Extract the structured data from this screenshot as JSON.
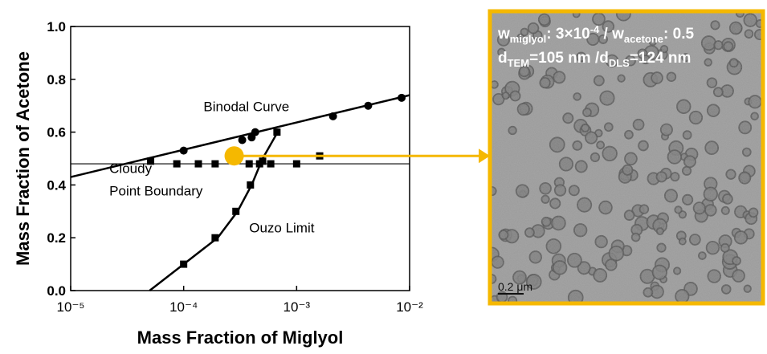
{
  "chart_data": {
    "type": "scatter",
    "xlabel": "Mass Fraction of Miglyol",
    "ylabel": "Mass Fraction of Acetone",
    "xscale": "log",
    "xlim": [
      1e-05,
      0.01
    ],
    "ylim": [
      0,
      1
    ],
    "xticks": [
      {
        "value": 1e-05,
        "label": "10⁻⁵"
      },
      {
        "value": 0.0001,
        "label": "10⁻⁴"
      },
      {
        "value": 0.001,
        "label": "10⁻³"
      },
      {
        "value": 0.01,
        "label": "10⁻²"
      }
    ],
    "yticks": [
      {
        "value": 0,
        "label": "0.0"
      },
      0.2,
      0.4,
      0.6,
      0.8,
      {
        "value": 1,
        "label": "1.0"
      }
    ],
    "series": [
      {
        "marker": "none",
        "line": true,
        "color": "#000000",
        "x": [
          1e-05,
          0.01
        ],
        "values": [
          0.43,
          0.74
        ]
      },
      {
        "marker": "none",
        "line": true,
        "color": "#000000",
        "x": [
          1e-05,
          0.01
        ],
        "values": [
          0.48,
          0.48
        ]
      },
      {
        "marker": "none",
        "line": true,
        "color": "#000000",
        "x": [
          5e-05,
          0.0001,
          0.0002,
          0.0003,
          0.0004,
          0.0005,
          0.0007
        ],
        "values": [
          0,
          0.1,
          0.2,
          0.3,
          0.4,
          0.5,
          0.61
        ]
      },
      {
        "marker": "circle",
        "color": "#000000",
        "x": [
          0.0001,
          0.00033,
          0.0004,
          0.00043,
          0.0021,
          0.0043,
          0.0085
        ],
        "values": [
          0.53,
          0.57,
          0.58,
          0.6,
          0.66,
          0.7,
          0.73
        ]
      },
      {
        "marker": "square",
        "color": "#000000",
        "x": [
          5.1e-05,
          8.7e-05,
          0.000135,
          0.00019,
          0.00038,
          0.00047,
          0.00059,
          0.001,
          0.0016
        ],
        "values": [
          0.49,
          0.48,
          0.48,
          0.48,
          0.48,
          0.48,
          0.48,
          0.48,
          0.51
        ]
      },
      {
        "marker": "square",
        "color": "#000000",
        "x": [
          0.0001,
          0.00019,
          0.00029,
          0.00039,
          0.0005,
          0.00067
        ],
        "values": [
          0.1,
          0.2,
          0.3,
          0.4,
          0.49,
          0.6
        ]
      },
      {
        "marker": "highlight",
        "color": "#f5b800",
        "x": [
          0.00028
        ],
        "values": [
          0.51
        ]
      }
    ],
    "annotations": [
      {
        "text": "Binodal Curve",
        "x": 0.00015,
        "y": 0.68
      },
      {
        "text": "Cloudy",
        "x": 2.2e-05,
        "y": 0.445
      },
      {
        "text": "Point Boundary",
        "x": 2.2e-05,
        "y": 0.36
      },
      {
        "text": "Ouzo Limit",
        "x": 0.00038,
        "y": 0.22
      }
    ]
  },
  "image_panel": {
    "caption": [
      [
        {
          "text": "w"
        },
        {
          "text": "miglyol",
          "shift": "sub"
        },
        {
          "text": ": 3×10"
        },
        {
          "text": "-4",
          "shift": "super"
        },
        {
          "text": " / w"
        },
        {
          "text": "acetone",
          "shift": "sub"
        },
        {
          "text": ": 0.5"
        }
      ],
      [
        {
          "text": "d"
        },
        {
          "text": "TEM",
          "shift": "sub"
        },
        {
          "text": "=105 nm /d"
        },
        {
          "text": "DLS",
          "shift": "sub"
        },
        {
          "text": "=124 nm"
        }
      ]
    ],
    "scale_bar": "0.2 μm",
    "border_color": "#f5b800"
  }
}
